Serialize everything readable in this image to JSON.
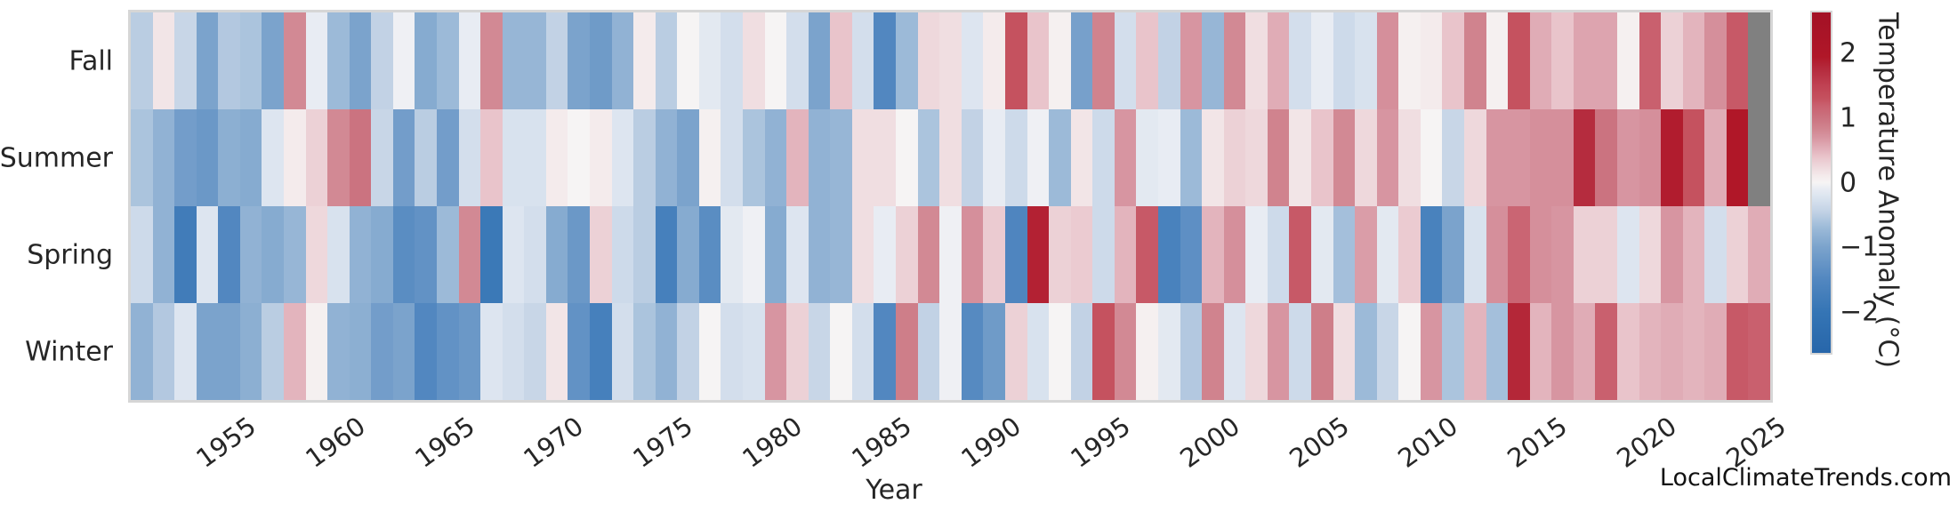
{
  "watermark": "LocalClimateTrends.com",
  "chart_data": {
    "type": "heatmap",
    "xlabel": "Year",
    "x_start": 1950,
    "x_end": 2024,
    "x_ticks": [
      1955,
      1960,
      1965,
      1970,
      1975,
      1980,
      1985,
      1990,
      1995,
      2000,
      2005,
      2010,
      2015,
      2020,
      2025
    ],
    "rows": [
      "Fall",
      "Summer",
      "Spring",
      "Winter"
    ],
    "series": [
      {
        "name": "Fall",
        "values": [
          -0.5,
          0.15,
          -0.4,
          -1.0,
          -0.55,
          -0.6,
          -1.0,
          0.8,
          -0.1,
          -0.7,
          -1.0,
          -0.45,
          -0.05,
          -0.9,
          -0.7,
          -0.1,
          0.8,
          -0.75,
          -0.75,
          -0.45,
          -1.0,
          -1.15,
          -0.8,
          0.1,
          -0.5,
          0.0,
          -0.15,
          -0.3,
          0.2,
          0.0,
          -0.3,
          -1.0,
          0.4,
          -0.3,
          -1.5,
          -0.7,
          0.25,
          0.2,
          -0.2,
          0.1,
          1.3,
          0.4,
          0.05,
          -1.05,
          0.85,
          -0.3,
          0.4,
          -0.45,
          0.7,
          -0.75,
          0.8,
          0.2,
          0.55,
          -0.3,
          -0.1,
          -0.35,
          -0.25,
          0.75,
          0.05,
          0.1,
          0.4,
          0.85,
          0.05,
          1.3,
          0.55,
          0.4,
          0.6,
          0.6,
          0.05,
          1.2,
          0.3,
          0.5,
          0.75,
          1.25,
          null
        ]
      },
      {
        "name": "Summer",
        "values": [
          -0.6,
          -0.8,
          -1.1,
          -1.2,
          -0.85,
          -0.9,
          -0.2,
          0.1,
          0.3,
          0.8,
          1.0,
          -0.4,
          -1.1,
          -0.5,
          -1.1,
          -0.3,
          0.4,
          -0.25,
          -0.25,
          0.1,
          0.0,
          0.1,
          -0.2,
          -0.5,
          -0.8,
          -1.0,
          0.05,
          -0.3,
          -0.6,
          -0.8,
          0.5,
          -0.8,
          -0.75,
          0.2,
          0.2,
          0.0,
          -0.6,
          0.2,
          -0.45,
          -0.1,
          -0.35,
          -0.05,
          -0.7,
          0.15,
          -0.35,
          0.7,
          -0.15,
          -0.1,
          -0.7,
          0.15,
          0.3,
          0.25,
          0.85,
          0.15,
          0.4,
          0.8,
          0.25,
          0.7,
          0.2,
          0.0,
          -0.4,
          0.25,
          0.7,
          0.7,
          0.75,
          0.75,
          1.75,
          1.0,
          0.7,
          0.75,
          1.9,
          1.3,
          0.55,
          1.95,
          null
        ]
      },
      {
        "name": "Spring",
        "values": [
          -0.35,
          -0.8,
          -1.8,
          -0.2,
          -1.5,
          -0.8,
          -0.9,
          -0.75,
          0.25,
          -0.25,
          -0.8,
          -0.9,
          -1.4,
          -1.3,
          -0.7,
          0.8,
          -1.9,
          -0.2,
          -0.3,
          -0.9,
          -1.2,
          0.3,
          -0.35,
          -0.5,
          -1.7,
          -0.9,
          -1.4,
          -0.15,
          -0.05,
          -0.9,
          -0.2,
          -0.8,
          -0.75,
          0.2,
          -0.1,
          0.3,
          0.8,
          -0.05,
          0.75,
          0.35,
          -1.55,
          1.85,
          0.3,
          0.35,
          -0.35,
          0.5,
          1.25,
          -1.65,
          -1.35,
          0.5,
          0.75,
          -0.1,
          -0.35,
          1.25,
          -0.15,
          -0.65,
          0.65,
          -0.15,
          0.35,
          -1.65,
          -1.0,
          -0.25,
          0.75,
          1.15,
          0.75,
          0.7,
          0.3,
          0.3,
          -0.2,
          0.25,
          0.7,
          0.5,
          -0.3,
          0.3,
          0.55
        ]
      },
      {
        "name": "Winter",
        "values": [
          -0.8,
          -0.55,
          -0.2,
          -1.0,
          -1.0,
          -0.85,
          -0.5,
          0.5,
          0.05,
          -0.8,
          -0.85,
          -1.1,
          -1.0,
          -1.5,
          -1.3,
          -1.2,
          -0.2,
          -0.3,
          -0.4,
          0.15,
          -1.3,
          -1.7,
          -0.3,
          -0.6,
          -0.8,
          -0.45,
          0.0,
          -0.3,
          -0.25,
          0.7,
          0.3,
          -0.4,
          0.0,
          -0.3,
          -1.5,
          0.9,
          -0.45,
          -0.05,
          -1.45,
          -1.15,
          0.3,
          -0.25,
          0.0,
          -0.45,
          1.3,
          0.8,
          0.05,
          -0.15,
          -0.55,
          0.85,
          -0.2,
          0.25,
          0.7,
          -0.35,
          0.9,
          0.2,
          -0.7,
          -0.4,
          0.0,
          0.7,
          -0.6,
          0.5,
          -0.65,
          1.8,
          0.5,
          0.7,
          0.55,
          1.2,
          0.4,
          0.5,
          0.55,
          0.5,
          0.55,
          1.25,
          1.2
        ]
      }
    ],
    "colorbar": {
      "label": "Temperature Anomaly (°C)",
      "tick_values": [
        2,
        1,
        0,
        -1,
        -2
      ],
      "tick_labels": [
        "2",
        "1",
        "0",
        "−1",
        "−2"
      ],
      "vmin": -2.64,
      "vmax": 2.64
    },
    "colormap": {
      "missing_color": "#808080",
      "stops": [
        [
          -2.64,
          "#2766aa"
        ],
        [
          -2.0,
          "#3575b5"
        ],
        [
          -1.5,
          "#5287c0"
        ],
        [
          -1.0,
          "#7ba3cc"
        ],
        [
          -0.7,
          "#9cbad8"
        ],
        [
          -0.45,
          "#c2d2e5"
        ],
        [
          -0.25,
          "#d8e2ee"
        ],
        [
          -0.1,
          "#e8ecf3"
        ],
        [
          0.0,
          "#f6f4f4"
        ],
        [
          0.1,
          "#f4ebec"
        ],
        [
          0.25,
          "#eed8dc"
        ],
        [
          0.4,
          "#e9c4cb"
        ],
        [
          0.55,
          "#e0acb6"
        ],
        [
          0.7,
          "#d795a1"
        ],
        [
          0.85,
          "#d0838e"
        ],
        [
          1.0,
          "#cb7380"
        ],
        [
          1.2,
          "#c9606e"
        ],
        [
          1.3,
          "#c5525f"
        ],
        [
          1.5,
          "#c04253"
        ],
        [
          1.75,
          "#b52c3e"
        ],
        [
          1.95,
          "#b01728"
        ],
        [
          2.64,
          "#a31126"
        ]
      ]
    },
    "legend_position": "right",
    "grid": false
  }
}
